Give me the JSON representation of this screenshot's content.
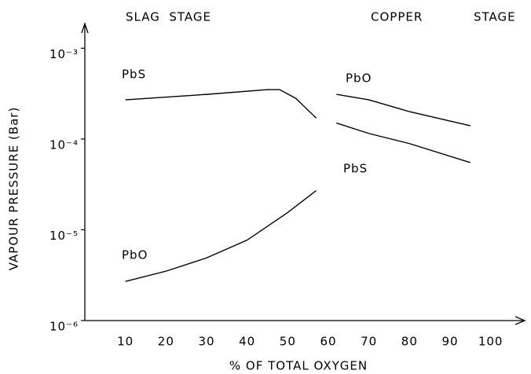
{
  "chart_data": {
    "type": "line",
    "y_label": "VAPOUR PRESSURE (Bar)",
    "x_label": "% OF TOTAL OXYGEN",
    "annotations": [
      "SLAG  STAGE",
      "COPPER",
      "STAGE"
    ],
    "log_y": true,
    "xlim": [
      0,
      108
    ],
    "ylim": [
      1e-06,
      0.0015
    ],
    "xticks": [
      10,
      20,
      30,
      40,
      50,
      60,
      70,
      80,
      90,
      100
    ],
    "yticks": [
      {
        "value": 0.001,
        "label": "10⁻³"
      },
      {
        "value": 0.0001,
        "label": "10⁻⁴"
      },
      {
        "value": 1e-05,
        "label": "10⁻⁵"
      },
      {
        "value": 1e-06,
        "label": "10⁻⁶"
      }
    ],
    "series": [
      {
        "name": "PbS",
        "color": "#000000",
        "x": [
          10,
          30,
          45,
          48,
          52,
          57
        ],
        "values": [
          0.00027,
          0.00031,
          0.00035,
          0.00035,
          0.00028,
          0.00017
        ]
      },
      {
        "name": "PbO",
        "color": "#000000",
        "x": [
          10,
          20,
          30,
          40,
          50,
          57
        ],
        "values": [
          2.7e-06,
          3.5e-06,
          4.9e-06,
          7.7e-06,
          1.55e-05,
          2.7e-05
        ]
      },
      {
        "name": "PbO",
        "color": "#000000",
        "x": [
          62,
          70,
          80,
          95
        ],
        "values": [
          0.00031,
          0.00027,
          0.0002,
          0.00014
        ]
      },
      {
        "name": "PbS",
        "color": "#000000",
        "x": [
          62,
          70,
          80,
          95
        ],
        "values": [
          0.00015,
          0.000115,
          8.9e-05,
          5.5e-05
        ]
      }
    ]
  }
}
